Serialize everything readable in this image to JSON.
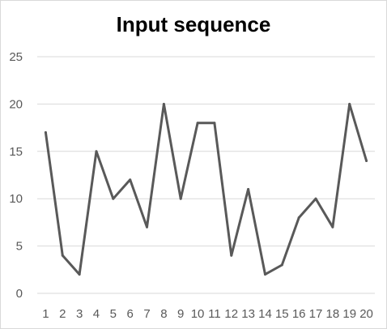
{
  "chart_data": {
    "type": "line",
    "title": "Input sequence",
    "xlabel": "",
    "ylabel": "",
    "categories": [
      "1",
      "2",
      "3",
      "4",
      "5",
      "6",
      "7",
      "8",
      "9",
      "10",
      "11",
      "12",
      "13",
      "14",
      "15",
      "16",
      "17",
      "18",
      "19",
      "20"
    ],
    "values": [
      17,
      4,
      2,
      15,
      10,
      12,
      7,
      20,
      10,
      18,
      18,
      4,
      11,
      2,
      3,
      8,
      10,
      7,
      20,
      14
    ],
    "ylim": [
      0,
      25
    ],
    "yticks": [
      "0",
      "5",
      "10",
      "15",
      "20",
      "25"
    ],
    "grid": true,
    "legend": "none",
    "colors": {
      "line": "#595959",
      "grid": "#d9d9d9",
      "axis": "#d9d9d9",
      "text": "#595959"
    }
  }
}
